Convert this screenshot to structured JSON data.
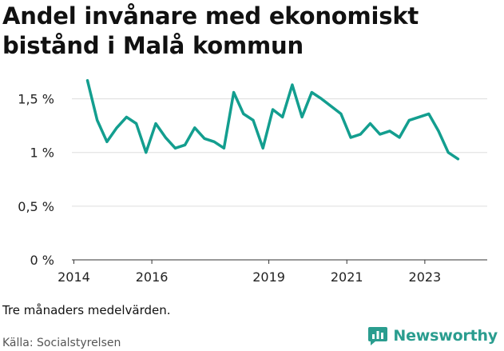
{
  "title_line1": "Andel invånare med ekonomiskt",
  "title_line2": "bistånd i Malå kommun",
  "note": "Tre månaders medelvärden.",
  "source": "Källa: Socialstyrelsen",
  "brand": "Newsworthy",
  "colors": {
    "line": "#139e8f",
    "grid": "#dddddd",
    "axis": "#333333",
    "brand": "#2a9d8f"
  },
  "chart_data": {
    "type": "line",
    "title": "Andel invånare med ekonomiskt bistånd i Malå kommun",
    "ylim": [
      0,
      1.75
    ],
    "xlim": [
      2013.95,
      2024.6
    ],
    "yticks": [
      {
        "value": 0,
        "label": "0 %"
      },
      {
        "value": 0.5,
        "label": "0,5 %"
      },
      {
        "value": 1,
        "label": "1 %"
      },
      {
        "value": 1.5,
        "label": "1,5 %"
      }
    ],
    "xticks": [
      {
        "value": 2014,
        "label": "2014"
      },
      {
        "value": 2016,
        "label": "2016"
      },
      {
        "value": 2019,
        "label": "2019"
      },
      {
        "value": 2021,
        "label": "2021"
      },
      {
        "value": 2023,
        "label": "2023"
      }
    ],
    "grid": true,
    "series": [
      {
        "x": [
          2014.35,
          2014.6,
          2014.85,
          2015.1,
          2015.35,
          2015.6,
          2015.85,
          2016.1,
          2016.35,
          2016.6,
          2016.85,
          2017.1,
          2017.35,
          2017.6,
          2017.85,
          2018.1,
          2018.35,
          2018.6,
          2018.85,
          2019.1,
          2019.35,
          2019.6,
          2019.85,
          2020.1,
          2020.35,
          2020.6,
          2020.85,
          2021.1,
          2021.35,
          2021.6,
          2021.85,
          2022.1,
          2022.35,
          2022.6,
          2022.85,
          2023.1,
          2023.35,
          2023.6,
          2023.85
        ],
        "y": [
          1.67,
          1.3,
          1.1,
          1.23,
          1.33,
          1.27,
          1.0,
          1.27,
          1.14,
          1.04,
          1.07,
          1.23,
          1.13,
          1.1,
          1.04,
          1.56,
          1.36,
          1.3,
          1.04,
          1.4,
          1.33,
          1.63,
          1.33,
          1.56,
          1.5,
          1.43,
          1.36,
          1.14,
          1.17,
          1.27,
          1.17,
          1.2,
          1.14,
          1.3,
          1.33,
          1.36,
          1.2,
          1.0,
          0.94
        ]
      }
    ]
  }
}
